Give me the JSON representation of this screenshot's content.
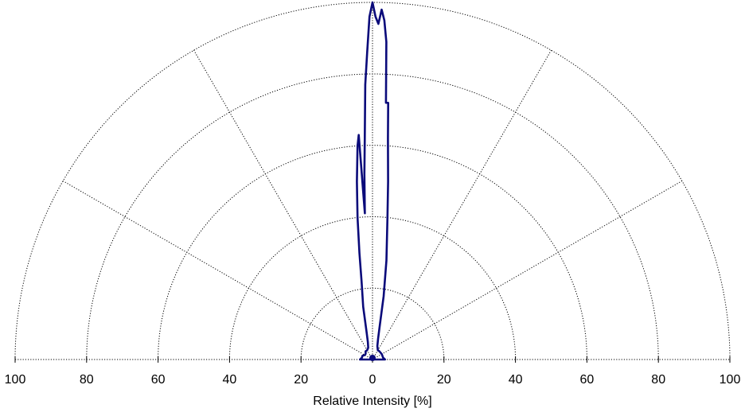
{
  "chart_data": {
    "type": "polar",
    "xlabel": "Relative Intensity [%]",
    "r_range": [
      0,
      100
    ],
    "angle_range_deg": [
      -90,
      90
    ],
    "angle_zero": "up",
    "rings": [
      20,
      40,
      60,
      80,
      100
    ],
    "spokes_deg": [
      -60,
      -30,
      0,
      30,
      60
    ],
    "tick_labels": [
      "100",
      "80",
      "60",
      "40",
      "20",
      "0",
      "20",
      "40",
      "60",
      "80",
      "100"
    ],
    "grid": true,
    "series_color": "#0a0a7a",
    "series": [
      {
        "angle_deg": [
          -90,
          -80,
          -70,
          -60,
          -50,
          -40,
          -30,
          -20,
          -15,
          -12,
          -10,
          -8,
          -7,
          -6,
          -5,
          -4,
          -3.5,
          -3,
          -2.5,
          -2,
          -1.5,
          -1,
          -0.5,
          0,
          0.5,
          1,
          1.5,
          2,
          2.5,
          3,
          3.5,
          4,
          5,
          6,
          8,
          10,
          12,
          15,
          20,
          30,
          40,
          60,
          80,
          90
        ],
        "r": [
          3.5,
          3,
          3,
          2.5,
          2.5,
          3,
          3,
          3.5,
          5,
          8,
          15,
          22,
          30,
          40,
          50,
          60,
          63,
          41,
          52,
          62,
          77,
          86,
          96,
          100,
          96,
          94,
          98,
          95,
          89,
          72,
          72,
          62,
          50,
          40,
          28,
          18,
          10,
          6,
          4,
          3,
          3,
          3,
          3,
          3.5
        ]
      }
    ]
  }
}
